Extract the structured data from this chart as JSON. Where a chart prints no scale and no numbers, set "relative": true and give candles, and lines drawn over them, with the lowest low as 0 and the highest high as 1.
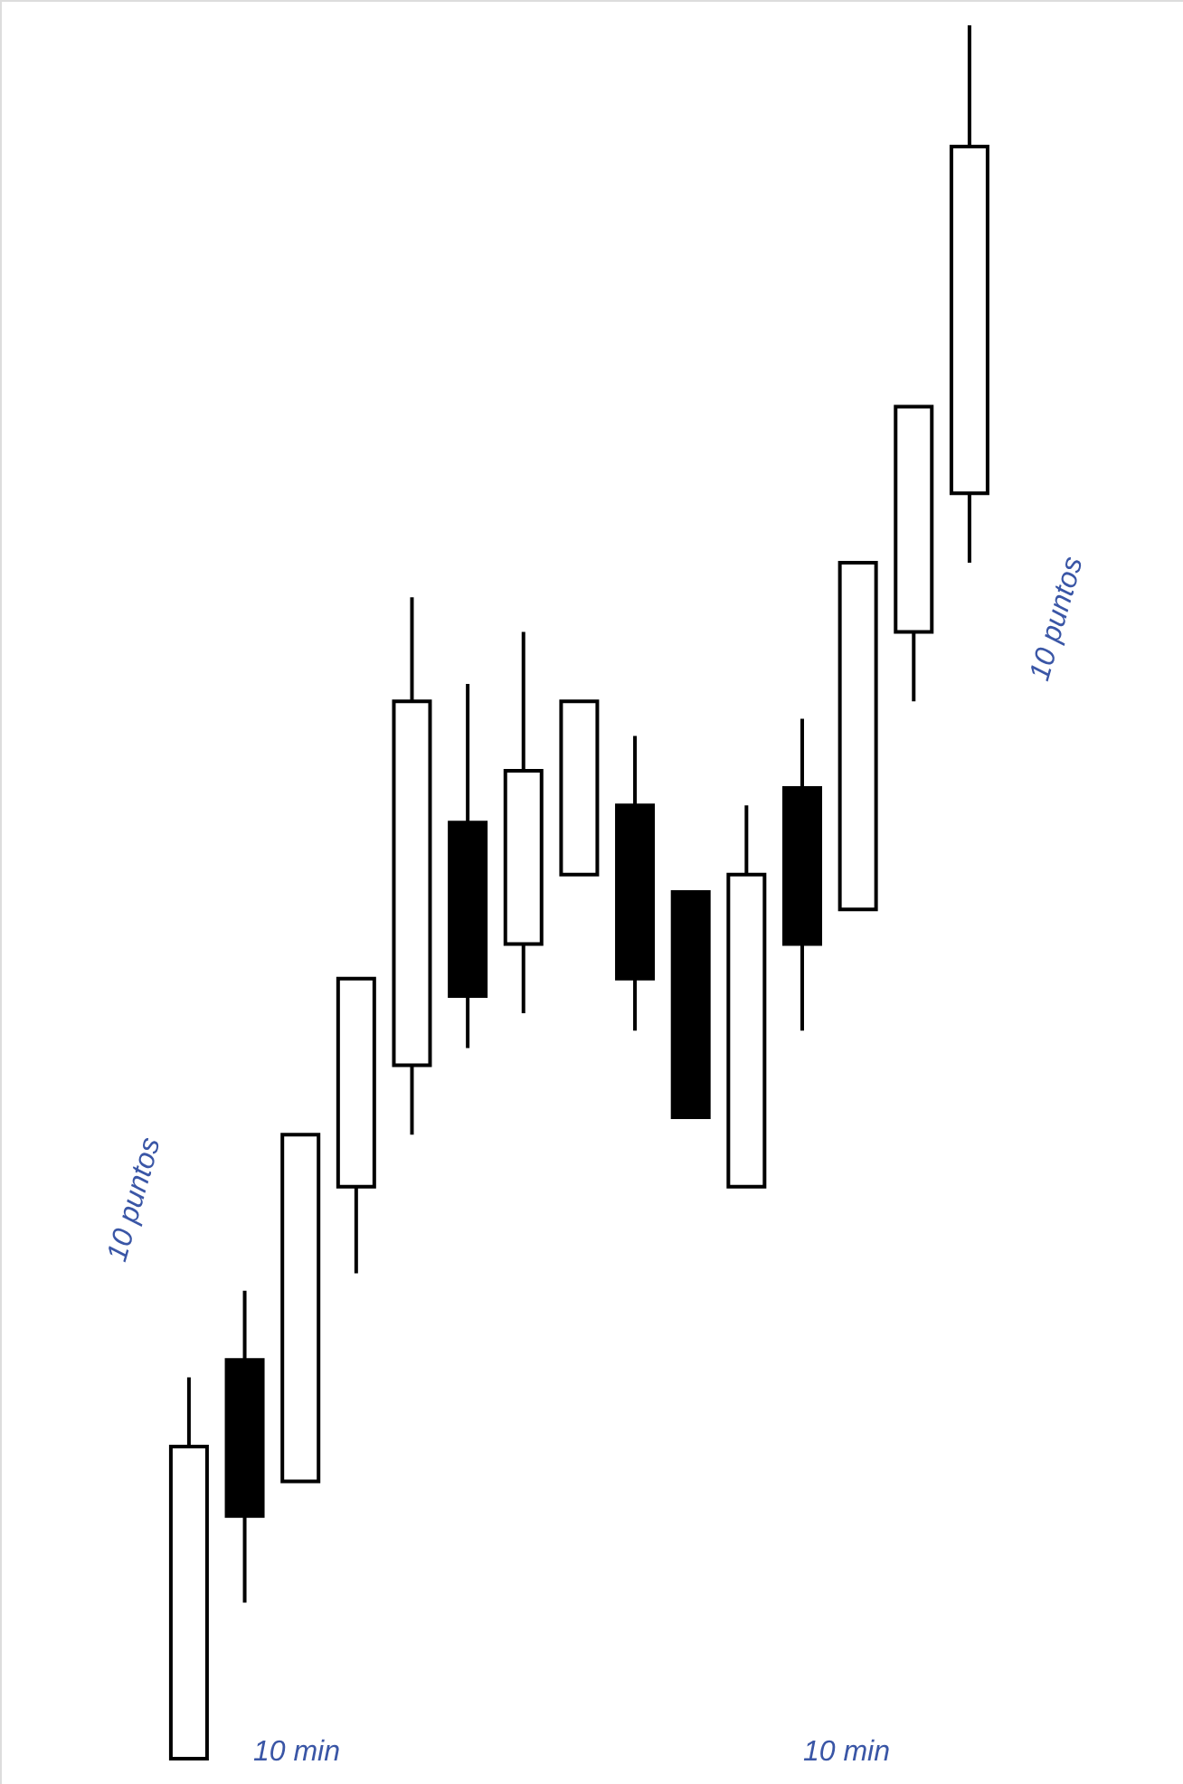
{
  "chart_data": {
    "type": "candlestick",
    "relative": true,
    "categories": [
      null,
      null,
      null,
      null,
      null,
      null,
      null,
      null,
      null,
      null,
      null,
      null,
      null,
      null,
      null
    ],
    "ohlc": [
      [
        0,
        0.22,
        0,
        0.18
      ],
      [
        0.23,
        0.27,
        0.09,
        0.14
      ],
      [
        0.16,
        0.36,
        0.16,
        0.36
      ],
      [
        0.33,
        0.45,
        0.28,
        0.45
      ],
      [
        0.4,
        0.67,
        0.36,
        0.61
      ],
      [
        0.54,
        0.62,
        0.41,
        0.44
      ],
      [
        0.47,
        0.65,
        0.43,
        0.57
      ],
      [
        0.51,
        0.61,
        0.51,
        0.61
      ],
      [
        0.55,
        0.59,
        0.42,
        0.45
      ],
      [
        0.5,
        0.5,
        0.37,
        0.37
      ],
      [
        0.33,
        0.55,
        0.33,
        0.51
      ],
      [
        0.56,
        0.6,
        0.42,
        0.47
      ],
      [
        0.49,
        0.69,
        0.49,
        0.69
      ],
      [
        0.65,
        0.78,
        0.61,
        0.78
      ],
      [
        0.73,
        1,
        0.69,
        0.93
      ]
    ],
    "colors": [
      "#ffffff",
      "#000000",
      "#ffffff",
      "#ffffff",
      "#ffffff",
      "#000000",
      "#ffffff",
      "#ffffff",
      "#000000",
      "#000000",
      "#ffffff",
      "#000000",
      "#ffffff",
      "#ffffff",
      "#ffffff"
    ],
    "annotations": [
      "10 puntos",
      "10 puntos",
      "10 min",
      "10 min"
    ]
  }
}
